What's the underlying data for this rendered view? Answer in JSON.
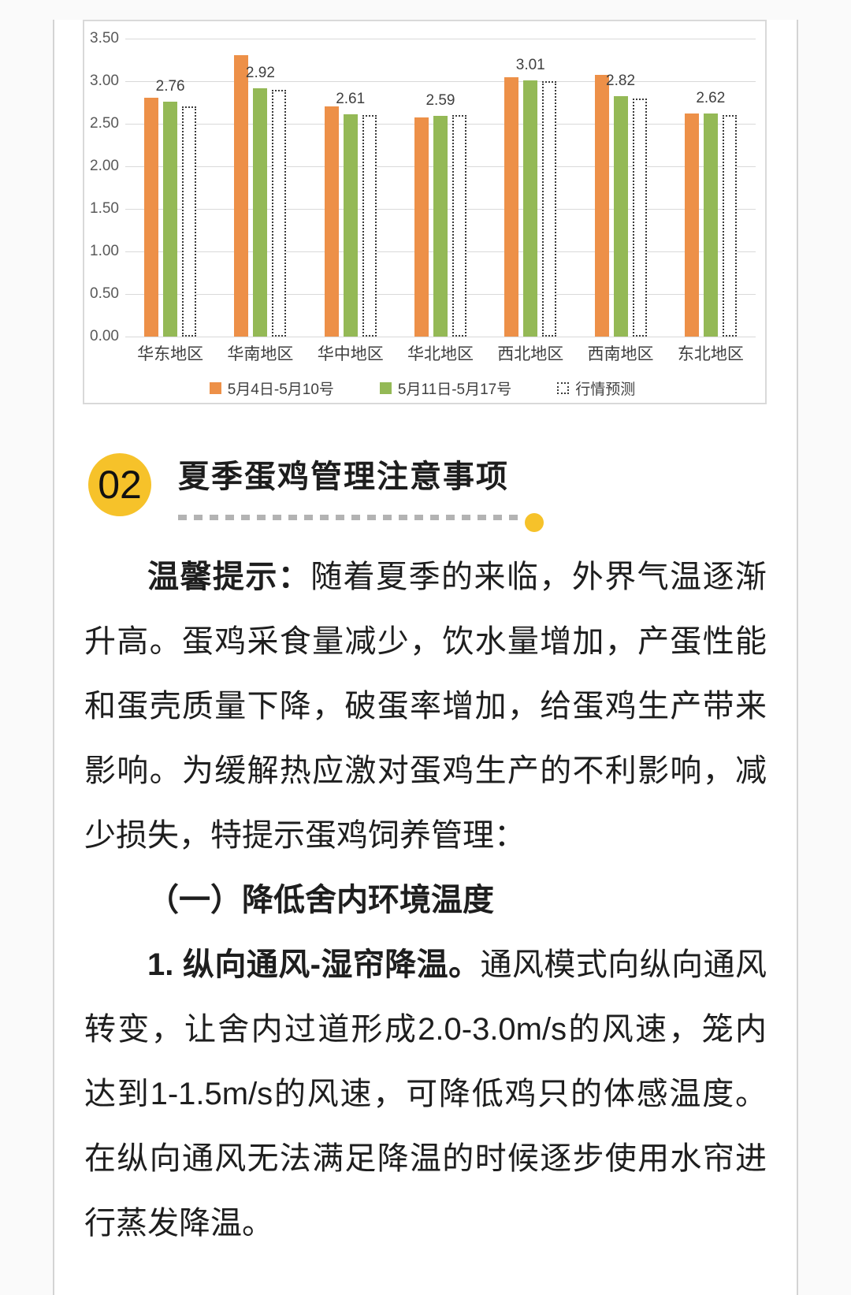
{
  "chart_data": {
    "type": "bar",
    "title": "",
    "categories": [
      "华东地区",
      "华南地区",
      "华中地区",
      "华北地区",
      "西北地区",
      "西南地区",
      "东北地区"
    ],
    "series": [
      {
        "name": "5月4日-5月10号",
        "style": "solid",
        "color": "#ED9048",
        "values": [
          2.81,
          3.31,
          2.7,
          2.57,
          3.05,
          3.07,
          2.62
        ]
      },
      {
        "name": "5月11日-5月17号",
        "style": "solid",
        "color": "#94B956",
        "values": [
          2.76,
          2.92,
          2.61,
          2.59,
          3.01,
          2.82,
          2.62
        ]
      },
      {
        "name": "行情预测",
        "style": "dotted",
        "color": "#FFFFFF",
        "values": [
          2.7,
          2.9,
          2.6,
          2.6,
          3.0,
          2.8,
          2.6
        ]
      }
    ],
    "data_labels": [
      "2.76",
      "2.92",
      "2.61",
      "2.59",
      "3.01",
      "2.82",
      "2.62"
    ],
    "data_label_series": "5月11日-5月17号",
    "yticks": [
      "3.50",
      "3.00",
      "2.50",
      "2.00",
      "1.50",
      "1.00",
      "0.50",
      "0.00"
    ],
    "ylim": [
      0,
      3.5
    ],
    "ytick_step": 0.5,
    "grid": true,
    "legend_position": "bottom",
    "xlabel": "",
    "ylabel": ""
  },
  "section": {
    "number": "02",
    "title": "夏季蛋鸡管理注意事项"
  },
  "article": {
    "p1_bold": "温馨提示：",
    "p1_text": "随着夏季的来临，外界气温逐渐升高。蛋鸡采食量减少，饮水量增加，产蛋性能和蛋壳质量下降，破蛋率增加，给蛋鸡生产带来影响。为缓解热应激对蛋鸡生产的不利影响，减少损失，特提示蛋鸡饲养管理：",
    "h1": "（一）降低舍内环境温度",
    "p2_bold": "1. 纵向通风-湿帘降温。",
    "p2_text": "通风模式向纵向通风转变，让舍内过道形成2.0-3.0m/s的风速，笼内达到1-1.5m/s的风速，可降低鸡只的体感温度。在纵向通风无法满足降温的时候逐步使用水帘进行蒸发降温。"
  },
  "colors": {
    "series1_orange": "#ED9048",
    "series2_green": "#94B956",
    "badge_yellow": "#F6C22A",
    "gridline": "#D9D9D9",
    "panel_border": "#D9D9D9",
    "body_text": "#1E1E1E"
  }
}
